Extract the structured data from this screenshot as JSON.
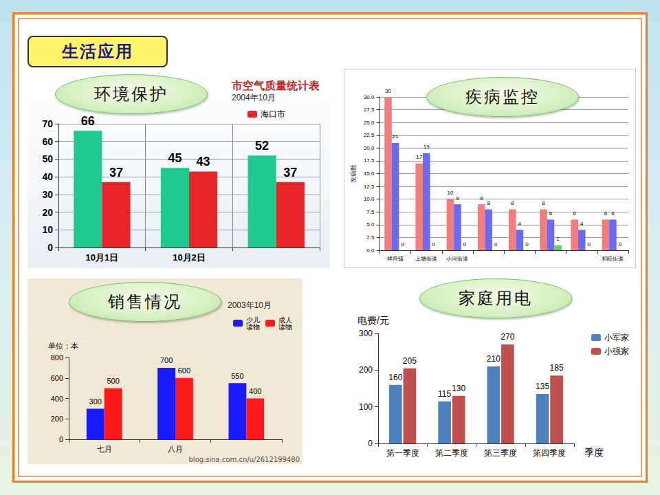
{
  "header": {
    "title": "生活应用"
  },
  "chart_data": [
    {
      "type": "bar",
      "title": "市空气质量统计表",
      "subtitle": "2004年10月",
      "annotations": [
        "环境保护"
      ],
      "categories": [
        "10月1日",
        "10月2日",
        null
      ],
      "series": [
        {
          "color": "#1fc98f",
          "values": [
            66,
            45,
            52
          ]
        },
        {
          "name": "海口市",
          "color": "#e8262a",
          "values": [
            37,
            43,
            37
          ]
        }
      ],
      "ylim": [
        0,
        70
      ],
      "yticks": [
        0,
        10,
        20,
        30,
        40,
        50,
        60,
        70
      ],
      "grid": true,
      "legend": "top-right",
      "data_labels": true
    },
    {
      "type": "bar",
      "annotations": [
        "疾病监控"
      ],
      "ylabel": "发病数",
      "categories": [
        "祥符镇",
        "上塘街道",
        "小河街道",
        null,
        null,
        null,
        null,
        "和睦街道"
      ],
      "series": [
        {
          "color": "#f47c7c",
          "values": [
            30,
            17,
            10,
            9,
            8,
            8,
            6,
            6
          ]
        },
        {
          "color": "#6a6af2",
          "values": [
            21,
            19,
            9,
            8,
            4,
            6,
            4,
            6
          ]
        },
        {
          "color": "#5fd35f",
          "values": [
            0,
            0,
            0,
            0,
            0,
            1,
            0,
            0
          ]
        }
      ],
      "ylim": [
        0,
        30
      ],
      "yticks": [
        {
          "value": 0,
          "label": "0.0"
        },
        2.5,
        {
          "value": 5,
          "label": "5.0"
        },
        7.5,
        {
          "value": 10,
          "label": "10.0"
        },
        12.5,
        {
          "value": 15,
          "label": "15.0"
        },
        17.5,
        {
          "value": 20,
          "label": "20.0"
        },
        22.5,
        {
          "value": 25,
          "label": "25.0"
        },
        27.5,
        {
          "value": 30,
          "label": "30.0"
        }
      ],
      "grid": true,
      "data_labels": true
    },
    {
      "type": "bar",
      "subtitle": "2003年10月",
      "annotations": [
        "销售情况"
      ],
      "ylabel": "单位：本",
      "source": "blog.sina.com.cn/u/2612199480",
      "categories": [
        "七月",
        "八月",
        null
      ],
      "series": [
        {
          "name": "少儿读物",
          "color": "#1a1aff",
          "values": [
            300,
            700,
            550
          ]
        },
        {
          "name": "成人读物",
          "color": "#ff1a1a",
          "values": [
            500,
            600,
            400
          ]
        }
      ],
      "ylim": [
        0,
        800
      ],
      "yticks": [
        0,
        200,
        400,
        600,
        800
      ],
      "grid": false,
      "legend": "top-right",
      "data_labels": true
    },
    {
      "type": "bar",
      "annotations": [
        "家庭用电"
      ],
      "ylabel": "电费/元",
      "xlabel": "季度",
      "categories": [
        "第一季度",
        "第二季度",
        "第三季度",
        "第四季度"
      ],
      "series": [
        {
          "name": "小军家",
          "color": "#4f81bd",
          "values": [
            160,
            115,
            210,
            135
          ]
        },
        {
          "name": "小强家",
          "color": "#c0504d",
          "values": [
            205,
            130,
            270,
            185
          ]
        }
      ],
      "ylim": [
        0,
        300
      ],
      "yticks": [
        0,
        100,
        200,
        300
      ],
      "grid": false,
      "legend": "right",
      "data_labels": true
    }
  ]
}
